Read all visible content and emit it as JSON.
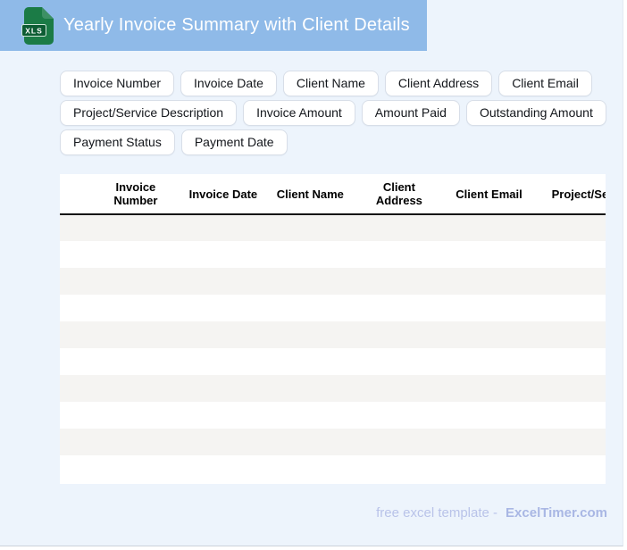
{
  "header": {
    "title": "Yearly Invoice Summary with Client Details",
    "icon": {
      "label": "XLS"
    },
    "bg_color": "#8fbae8"
  },
  "tags": [
    "Invoice Number",
    "Invoice Date",
    "Client Name",
    "Client Address",
    "Client Email",
    "Project/Service Description",
    "Invoice Amount",
    "Amount Paid",
    "Outstanding Amount",
    "Payment Status",
    "Payment Date"
  ],
  "table": {
    "columns": [
      "Invoice Number",
      "Invoice Date",
      "Client Name",
      "Client Address",
      "Client Email",
      "Project/Service Description"
    ],
    "empty_row_count": 10,
    "stripe_color": "#f5f4f2"
  },
  "footer": {
    "text": "free excel template -",
    "brand": "ExcelTimer.com"
  },
  "colors": {
    "header_bar": "#8fbae8",
    "panel_background": "#edf4fc",
    "icon_green": "#1b7b46",
    "icon_badge_green": "#0d5c33",
    "row_stripe": "#f5f4f2",
    "footer_text": "#b9c3e9",
    "footer_brand": "#a9b7e4"
  }
}
